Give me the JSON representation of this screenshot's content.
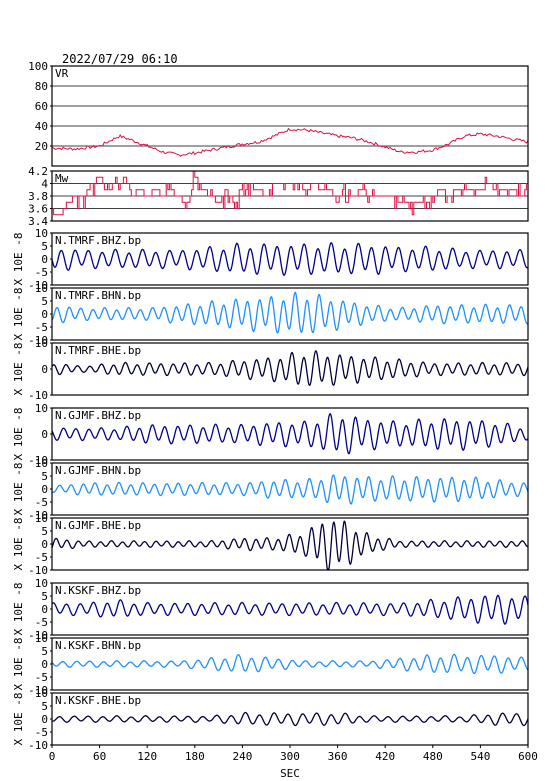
{
  "header": {
    "datetime": "2022/07/29 06:10"
  },
  "xaxis": {
    "label": "SEC",
    "ticks": [
      0,
      60,
      120,
      180,
      240,
      300,
      360,
      420,
      480,
      540,
      600
    ],
    "range": [
      0,
      600
    ]
  },
  "colors": {
    "vr_mw": "#dd1144",
    "z": "#00008b",
    "n": "#1e90ff",
    "e": "#00003c",
    "frame": "#000000",
    "grid": "#000000"
  },
  "chart_data": [
    {
      "type": "line",
      "label": "VR",
      "ylim": [
        0,
        100
      ],
      "yticks": [
        20,
        40,
        60,
        80,
        100
      ],
      "grid": true,
      "x": [
        0,
        30,
        60,
        75,
        85,
        100,
        120,
        140,
        160,
        180,
        200,
        220,
        240,
        260,
        280,
        300,
        320,
        340,
        360,
        380,
        400,
        420,
        440,
        460,
        480,
        500,
        520,
        540,
        560,
        580,
        600
      ],
      "y": [
        18,
        17,
        20,
        26,
        30,
        26,
        20,
        14,
        11,
        13,
        16,
        19,
        22,
        24,
        30,
        37,
        36,
        33,
        30,
        28,
        24,
        19,
        14,
        14,
        16,
        22,
        30,
        32,
        30,
        27,
        24
      ]
    },
    {
      "type": "step",
      "label": "Mw",
      "ylim": [
        3.4,
        4.2
      ],
      "yticks": [
        3.4,
        3.6,
        3.8,
        4.0,
        4.2
      ],
      "grid": true,
      "x": [
        0,
        10,
        20,
        30,
        40,
        50,
        60,
        70,
        80,
        90,
        100,
        110,
        120,
        130,
        140,
        150,
        160,
        170,
        180,
        190,
        200,
        210,
        220,
        230,
        240,
        250,
        260,
        270,
        280,
        290,
        300,
        310,
        320,
        330,
        340,
        350,
        360,
        370,
        380,
        390,
        400,
        410,
        420,
        430,
        440,
        450,
        460,
        470,
        480,
        490,
        500,
        510,
        520,
        530,
        540,
        550,
        560,
        570,
        580,
        590,
        600
      ],
      "y": [
        3.6,
        3.5,
        3.7,
        3.8,
        3.8,
        4.0,
        4.1,
        3.9,
        4.0,
        4.1,
        3.9,
        3.9,
        3.8,
        3.9,
        3.8,
        3.9,
        3.8,
        3.6,
        4.1,
        3.9,
        3.8,
        3.7,
        3.9,
        3.6,
        4.0,
        4.0,
        3.9,
        3.8,
        4.0,
        4.0,
        4.0,
        4.0,
        3.9,
        4.0,
        3.9,
        3.9,
        3.8,
        3.9,
        3.8,
        3.9,
        3.8,
        3.8,
        3.8,
        3.8,
        3.7,
        3.7,
        3.7,
        3.7,
        3.8,
        3.9,
        3.8,
        3.9,
        3.9,
        3.9,
        3.9,
        4.0,
        3.9,
        3.9,
        3.9,
        3.8,
        3.9
      ]
    },
    {
      "type": "line",
      "label": "N.TMRF.BHZ.bp",
      "component": "z",
      "ylabel": "X 10E -8",
      "ylim": [
        -10,
        10
      ],
      "yticks": [
        -10,
        -5,
        0,
        5,
        10
      ],
      "x": [
        0,
        40,
        80,
        120,
        160,
        200,
        240,
        280,
        320,
        360,
        400,
        440,
        480,
        520,
        560,
        600
      ],
      "amplitude": [
        4,
        3,
        3,
        3,
        3,
        4,
        5,
        5,
        5,
        5,
        5,
        4,
        4,
        3,
        3,
        3
      ],
      "period_sec": 17
    },
    {
      "type": "line",
      "label": "N.TMRF.BHN.bp",
      "component": "n",
      "ylabel": "X 10E -8",
      "ylim": [
        -10,
        10
      ],
      "yticks": [
        -10,
        -5,
        0,
        5,
        10
      ],
      "x": [
        0,
        40,
        80,
        120,
        160,
        200,
        240,
        280,
        320,
        360,
        400,
        440,
        480,
        520,
        560,
        600
      ],
      "amplitude": [
        3,
        2,
        2,
        2,
        3,
        4,
        5,
        6,
        7,
        5,
        3,
        2,
        3,
        3,
        3,
        3
      ],
      "period_sec": 15
    },
    {
      "type": "line",
      "label": "N.TMRF.BHE.bp",
      "component": "e",
      "ylabel": "X 10E -8",
      "ylim": [
        -10,
        10
      ],
      "yticks": [
        -10,
        0,
        10
      ],
      "x": [
        0,
        40,
        80,
        120,
        160,
        200,
        240,
        280,
        320,
        360,
        400,
        440,
        480,
        520,
        560,
        600
      ],
      "amplitude": [
        2,
        1,
        2,
        2,
        2,
        2,
        3,
        4,
        6,
        5,
        4,
        3,
        2,
        2,
        2,
        2
      ],
      "period_sec": 15
    },
    {
      "type": "line",
      "label": "N.GJMF.BHZ.bp",
      "component": "z",
      "ylabel": "X 10E -8",
      "ylim": [
        -10,
        10
      ],
      "yticks": [
        -10,
        0,
        10
      ],
      "x": [
        0,
        40,
        80,
        120,
        160,
        200,
        240,
        280,
        320,
        360,
        400,
        440,
        480,
        520,
        560,
        600
      ],
      "amplitude": [
        2,
        2,
        2,
        3,
        3,
        3,
        3,
        4,
        4,
        7,
        5,
        4,
        5,
        5,
        4,
        2
      ],
      "period_sec": 16
    },
    {
      "type": "line",
      "label": "N.GJMF.BHN.bp",
      "component": "n",
      "ylabel": "X 10E -8",
      "ylim": [
        -10,
        10
      ],
      "yticks": [
        -10,
        -5,
        0,
        5,
        10
      ],
      "x": [
        0,
        40,
        80,
        120,
        160,
        200,
        240,
        280,
        320,
        360,
        400,
        440,
        480,
        520,
        560,
        600
      ],
      "amplitude": [
        1,
        2,
        2,
        2,
        2,
        2,
        2,
        3,
        3,
        5,
        4,
        4,
        4,
        4,
        3,
        2
      ],
      "period_sec": 15
    },
    {
      "type": "line",
      "label": "N.GJMF.BHE.bp",
      "component": "e",
      "ylabel": "X 10E -8",
      "ylim": [
        -10,
        10
      ],
      "yticks": [
        -10,
        -5,
        0,
        5,
        10
      ],
      "x": [
        0,
        40,
        80,
        120,
        160,
        200,
        240,
        280,
        320,
        340,
        360,
        380,
        400,
        440,
        480,
        520,
        560,
        600
      ],
      "amplitude": [
        2,
        1,
        1,
        1,
        1,
        1,
        2,
        2,
        4,
        8,
        9,
        6,
        3,
        1,
        1,
        1,
        1,
        1
      ],
      "period_sec": 14
    },
    {
      "type": "line",
      "label": "N.KSKF.BHZ.bp",
      "component": "z",
      "ylabel": "X 10E -8",
      "ylim": [
        -10,
        10
      ],
      "yticks": [
        -10,
        -5,
        0,
        5,
        10
      ],
      "x": [
        0,
        40,
        80,
        120,
        160,
        200,
        240,
        280,
        320,
        360,
        400,
        440,
        480,
        520,
        560,
        600
      ],
      "amplitude": [
        2,
        2,
        3,
        2,
        2,
        2,
        2,
        2,
        2,
        2,
        2,
        2,
        3,
        4,
        5,
        4
      ],
      "period_sec": 17
    },
    {
      "type": "line",
      "label": "N.KSKF.BHN.bp",
      "component": "n",
      "ylabel": "X 10E -8",
      "ylim": [
        -10,
        10
      ],
      "yticks": [
        -10,
        -5,
        0,
        5,
        10
      ],
      "x": [
        0,
        40,
        80,
        120,
        160,
        200,
        240,
        280,
        320,
        360,
        400,
        440,
        480,
        520,
        560,
        600
      ],
      "amplitude": [
        1,
        1,
        1,
        1,
        1,
        2,
        3,
        2,
        1,
        1,
        1,
        2,
        3,
        3,
        3,
        2
      ],
      "period_sec": 17
    },
    {
      "type": "line",
      "label": "N.KSKF.BHE.bp",
      "component": "e",
      "ylabel": "X 10E -8",
      "ylim": [
        -10,
        10
      ],
      "yticks": [
        -10,
        -5,
        0,
        5,
        10
      ],
      "x": [
        0,
        40,
        80,
        120,
        160,
        200,
        240,
        280,
        320,
        360,
        400,
        440,
        480,
        520,
        560,
        600
      ],
      "amplitude": [
        1,
        1,
        1,
        1,
        1,
        1,
        2,
        2,
        2,
        2,
        1,
        1,
        1,
        1,
        2,
        2
      ],
      "period_sec": 18
    }
  ]
}
